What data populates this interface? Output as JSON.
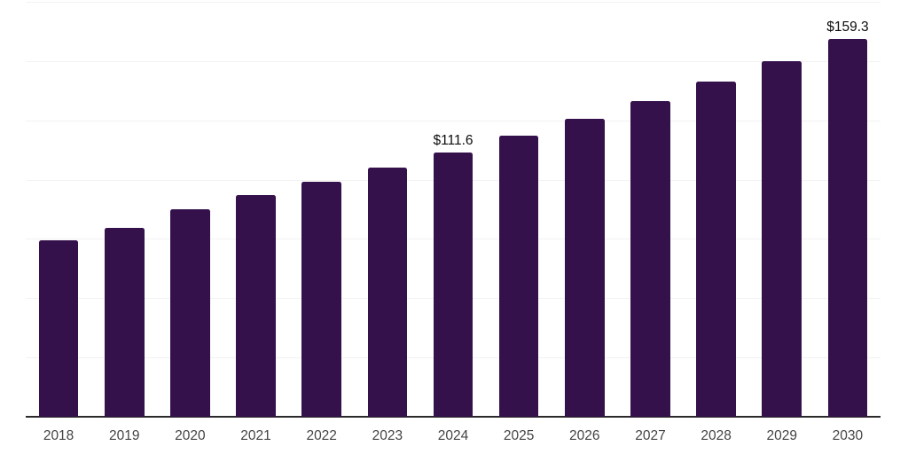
{
  "chart_data": {
    "type": "bar",
    "categories": [
      "2018",
      "2019",
      "2020",
      "2021",
      "2022",
      "2023",
      "2024",
      "2025",
      "2026",
      "2027",
      "2028",
      "2029",
      "2030"
    ],
    "values": [
      74.3,
      79.8,
      87.4,
      93.5,
      99.1,
      105.1,
      111.6,
      118.4,
      125.6,
      133.3,
      141.4,
      150.1,
      159.3
    ],
    "data_labels": {
      "2024": "$111.6",
      "2030": "$159.3"
    },
    "xlabel": "",
    "ylabel": "",
    "ylim": [
      0,
      175
    ],
    "gridline_interval": 25,
    "grid": "horizontal-only",
    "legend": "none",
    "colors": {
      "bar": "#35114B",
      "gridline": "#f2f2f3",
      "axis_line": "#2a2a2a",
      "tick_label": "#444444",
      "data_label": "#0d0d0d",
      "background": "#ffffff"
    }
  }
}
